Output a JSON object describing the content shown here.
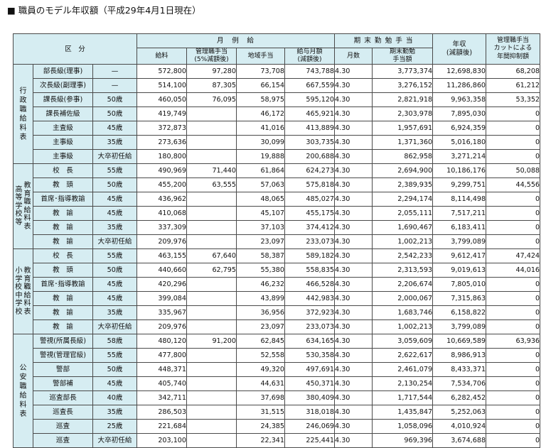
{
  "title": "■ 職員のモデル年収額（平成29年4月1日現在）",
  "header": {
    "kubun": "区　分",
    "gekkyu": "月　例　給",
    "kimatsu": "期 末 勤 勉 手 当",
    "nenshu": "年収\n(減額後)",
    "cut": "管理職手当\nカットによる\n年間抑制額",
    "kyuryo": "給料",
    "kanri": "管理職手当\n(5%減額後)",
    "chiiki": "地域手当",
    "kyuyo": "給与月額\n(減額後)",
    "getsusu": "月数",
    "kimatsu_gaku": "期末勤勉\n手当額"
  },
  "groups": [
    {
      "label": "行政職給料表",
      "rows": [
        {
          "rank": "部長級(理事)",
          "age": "—",
          "kyuryo": "572,800",
          "kanri": "97,280",
          "chiiki": "73,708",
          "kyuyo": "743,788",
          "months": "4.30",
          "bonus": "3,773,374",
          "annual": "12,698,830",
          "cut": "68,208"
        },
        {
          "rank": "次長級(副理事)",
          "age": "—",
          "kyuryo": "514,100",
          "kanri": "87,305",
          "chiiki": "66,154",
          "kyuyo": "667,559",
          "months": "4.30",
          "bonus": "3,276,152",
          "annual": "11,286,860",
          "cut": "61,212"
        },
        {
          "rank": "課長級(参事)",
          "age": "50歳",
          "kyuryo": "460,050",
          "kanri": "76,095",
          "chiiki": "58,975",
          "kyuyo": "595,120",
          "months": "4.30",
          "bonus": "2,821,918",
          "annual": "9,963,358",
          "cut": "53,352"
        },
        {
          "rank": "課長補佐級",
          "age": "50歳",
          "kyuryo": "419,749",
          "kanri": "",
          "chiiki": "46,172",
          "kyuyo": "465,921",
          "months": "4.30",
          "bonus": "2,303,978",
          "annual": "7,895,030",
          "cut": "0"
        },
        {
          "rank": "主査級",
          "age": "45歳",
          "kyuryo": "372,873",
          "kanri": "",
          "chiiki": "41,016",
          "kyuyo": "413,889",
          "months": "4.30",
          "bonus": "1,957,691",
          "annual": "6,924,359",
          "cut": "0"
        },
        {
          "rank": "主事級",
          "age": "35歳",
          "kyuryo": "273,636",
          "kanri": "",
          "chiiki": "30,099",
          "kyuyo": "303,735",
          "months": "4.30",
          "bonus": "1,371,360",
          "annual": "5,016,180",
          "cut": "0"
        },
        {
          "rank": "主事級",
          "age": "大卒初任給",
          "kyuryo": "180,800",
          "kanri": "",
          "chiiki": "19,888",
          "kyuyo": "200,688",
          "months": "4.30",
          "bonus": "862,958",
          "annual": "3,271,214",
          "cut": "0"
        }
      ]
    },
    {
      "label": "教育職給料表",
      "sub": "高等学校等",
      "rows": [
        {
          "rank": "校　長",
          "age": "55歳",
          "kyuryo": "490,969",
          "kanri": "71,440",
          "chiiki": "61,864",
          "kyuyo": "624,273",
          "months": "4.30",
          "bonus": "2,694,900",
          "annual": "10,186,176",
          "cut": "50,088"
        },
        {
          "rank": "教　頭",
          "age": "50歳",
          "kyuryo": "455,200",
          "kanri": "63,555",
          "chiiki": "57,063",
          "kyuyo": "575,818",
          "months": "4.30",
          "bonus": "2,389,935",
          "annual": "9,299,751",
          "cut": "44,556"
        },
        {
          "rank": "首席･指導教諭",
          "age": "45歳",
          "kyuryo": "436,962",
          "kanri": "",
          "chiiki": "48,065",
          "kyuyo": "485,027",
          "months": "4.30",
          "bonus": "2,294,174",
          "annual": "8,114,498",
          "cut": "0"
        },
        {
          "rank": "教　諭",
          "age": "45歳",
          "kyuryo": "410,068",
          "kanri": "",
          "chiiki": "45,107",
          "kyuyo": "455,175",
          "months": "4.30",
          "bonus": "2,055,111",
          "annual": "7,517,211",
          "cut": "0"
        },
        {
          "rank": "教　諭",
          "age": "35歳",
          "kyuryo": "337,309",
          "kanri": "",
          "chiiki": "37,103",
          "kyuyo": "374,412",
          "months": "4.30",
          "bonus": "1,690,467",
          "annual": "6,183,411",
          "cut": "0"
        },
        {
          "rank": "教　諭",
          "age": "大卒初任給",
          "kyuryo": "209,976",
          "kanri": "",
          "chiiki": "23,097",
          "kyuyo": "233,073",
          "months": "4.30",
          "bonus": "1,002,213",
          "annual": "3,799,089",
          "cut": "0"
        }
      ]
    },
    {
      "label": "教育職給料表",
      "sub": "小学校・中学校",
      "rows": [
        {
          "rank": "校　長",
          "age": "55歳",
          "kyuryo": "463,155",
          "kanri": "67,640",
          "chiiki": "58,387",
          "kyuyo": "589,182",
          "months": "4.30",
          "bonus": "2,542,233",
          "annual": "9,612,417",
          "cut": "47,424"
        },
        {
          "rank": "教　頭",
          "age": "50歳",
          "kyuryo": "440,660",
          "kanri": "62,795",
          "chiiki": "55,380",
          "kyuyo": "558,835",
          "months": "4.30",
          "bonus": "2,313,593",
          "annual": "9,019,613",
          "cut": "44,016"
        },
        {
          "rank": "首席･指導教諭",
          "age": "45歳",
          "kyuryo": "420,296",
          "kanri": "",
          "chiiki": "46,232",
          "kyuyo": "466,528",
          "months": "4.30",
          "bonus": "2,206,674",
          "annual": "7,805,010",
          "cut": "0"
        },
        {
          "rank": "教　諭",
          "age": "45歳",
          "kyuryo": "399,084",
          "kanri": "",
          "chiiki": "43,899",
          "kyuyo": "442,983",
          "months": "4.30",
          "bonus": "2,000,067",
          "annual": "7,315,863",
          "cut": "0"
        },
        {
          "rank": "教　諭",
          "age": "35歳",
          "kyuryo": "335,967",
          "kanri": "",
          "chiiki": "36,956",
          "kyuyo": "372,923",
          "months": "4.30",
          "bonus": "1,683,746",
          "annual": "6,158,822",
          "cut": "0"
        },
        {
          "rank": "教　諭",
          "age": "大卒初任給",
          "kyuryo": "209,976",
          "kanri": "",
          "chiiki": "23,097",
          "kyuyo": "233,073",
          "months": "4.30",
          "bonus": "1,002,213",
          "annual": "3,799,089",
          "cut": "0"
        }
      ]
    },
    {
      "label": "公安職給料表",
      "rows": [
        {
          "rank": "警視(所属長級)",
          "age": "58歳",
          "kyuryo": "480,120",
          "kanri": "91,200",
          "chiiki": "62,845",
          "kyuyo": "634,165",
          "months": "4.30",
          "bonus": "3,059,609",
          "annual": "10,669,589",
          "cut": "63,936"
        },
        {
          "rank": "警視(管理官級)",
          "age": "55歳",
          "kyuryo": "477,800",
          "kanri": "",
          "chiiki": "52,558",
          "kyuyo": "530,358",
          "months": "4.30",
          "bonus": "2,622,617",
          "annual": "8,986,913",
          "cut": "0"
        },
        {
          "rank": "警部",
          "age": "50歳",
          "kyuryo": "448,371",
          "kanri": "",
          "chiiki": "49,320",
          "kyuyo": "497,691",
          "months": "4.30",
          "bonus": "2,461,079",
          "annual": "8,433,371",
          "cut": "0"
        },
        {
          "rank": "警部補",
          "age": "45歳",
          "kyuryo": "405,740",
          "kanri": "",
          "chiiki": "44,631",
          "kyuyo": "450,371",
          "months": "4.30",
          "bonus": "2,130,254",
          "annual": "7,534,706",
          "cut": "0"
        },
        {
          "rank": "巡査部長",
          "age": "40歳",
          "kyuryo": "342,711",
          "kanri": "",
          "chiiki": "37,698",
          "kyuyo": "380,409",
          "months": "4.30",
          "bonus": "1,717,544",
          "annual": "6,282,452",
          "cut": "0"
        },
        {
          "rank": "巡査長",
          "age": "35歳",
          "kyuryo": "286,503",
          "kanri": "",
          "chiiki": "31,515",
          "kyuyo": "318,018",
          "months": "4.30",
          "bonus": "1,435,847",
          "annual": "5,252,063",
          "cut": "0"
        },
        {
          "rank": "巡査",
          "age": "25歳",
          "kyuryo": "221,684",
          "kanri": "",
          "chiiki": "24,385",
          "kyuyo": "246,069",
          "months": "4.30",
          "bonus": "1,058,096",
          "annual": "4,010,924",
          "cut": "0"
        },
        {
          "rank": "巡査",
          "age": "大卒初任給",
          "kyuryo": "203,100",
          "kanri": "",
          "chiiki": "22,341",
          "kyuyo": "225,441",
          "months": "4.30",
          "bonus": "969,396",
          "annual": "3,674,688",
          "cut": "0"
        }
      ]
    }
  ]
}
